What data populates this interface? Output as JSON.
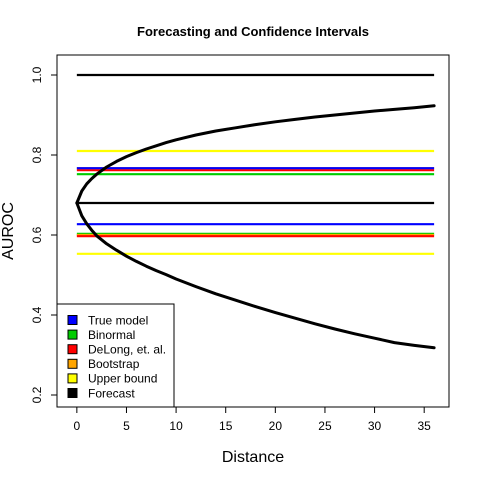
{
  "chart_data": {
    "type": "line",
    "title": "Forecasting and Confidence Intervals",
    "xlabel": "Distance",
    "ylabel": "AUROC",
    "xlim": [
      -2,
      37.5
    ],
    "ylim": [
      0.17,
      1.05
    ],
    "xticks": [
      0,
      5,
      10,
      15,
      20,
      25,
      30,
      35
    ],
    "xtick_labels": [
      "0",
      "5",
      "10",
      "15",
      "20",
      "25",
      "30",
      "35"
    ],
    "yticks": [
      0.2,
      0.4,
      0.6,
      0.8,
      1.0
    ],
    "ytick_labels": [
      "0.2",
      "0.4",
      "0.6",
      "0.8",
      "1.0"
    ],
    "grid": false,
    "legend_position": "bottom-left",
    "legend": [
      {
        "label": "True model",
        "color": "#0000ff"
      },
      {
        "label": "Binormal",
        "color": "#00cc00"
      },
      {
        "label": "DeLong, et. al.",
        "color": "#ff0000"
      },
      {
        "label": "Bootstrap",
        "color": "#ffa500"
      },
      {
        "label": "Upper bound",
        "color": "#ffff00"
      },
      {
        "label": "Forecast",
        "color": "#000000"
      }
    ],
    "horizontal_lines": [
      {
        "series": "Forecast",
        "y": 1.0,
        "color": "#000000",
        "x_range": [
          0,
          36
        ]
      },
      {
        "series": "Upper bound",
        "y": 0.81,
        "color": "#ffff00",
        "x_range": [
          0,
          36
        ]
      },
      {
        "series": "Bootstrap",
        "y": 0.767,
        "color": "#ffa500",
        "x_range": [
          0,
          36
        ]
      },
      {
        "series": "DeLong, et. al.",
        "y": 0.762,
        "color": "#ff0000",
        "x_range": [
          0,
          36
        ]
      },
      {
        "series": "True model",
        "y": 0.767,
        "color": "#0000ff",
        "x_range": [
          0,
          36
        ]
      },
      {
        "series": "Binormal",
        "y": 0.752,
        "color": "#00cc00",
        "x_range": [
          0,
          36
        ]
      },
      {
        "series": "Forecast",
        "y": 0.68,
        "color": "#000000",
        "x_range": [
          0,
          36
        ]
      },
      {
        "series": "True model",
        "y": 0.627,
        "color": "#0000ff",
        "x_range": [
          0,
          36
        ]
      },
      {
        "series": "Binormal",
        "y": 0.603,
        "color": "#00cc00",
        "x_range": [
          0,
          36
        ]
      },
      {
        "series": "Bootstrap",
        "y": 0.6,
        "color": "#ffa500",
        "x_range": [
          0,
          36
        ]
      },
      {
        "series": "DeLong, et. al.",
        "y": 0.597,
        "color": "#ff0000",
        "x_range": [
          0,
          36
        ]
      },
      {
        "series": "Upper bound",
        "y": 0.553,
        "color": "#ffff00",
        "x_range": [
          0,
          36
        ]
      }
    ],
    "curves": [
      {
        "series": "Forecast",
        "bound": "upper",
        "color": "#000000",
        "x": [
          0,
          0.5,
          1,
          1.5,
          2,
          3,
          4,
          5,
          6,
          7,
          8,
          9,
          10,
          12,
          14,
          16,
          18,
          20,
          22,
          24,
          26,
          28,
          30,
          32,
          34,
          36
        ],
        "y": [
          0.68,
          0.71,
          0.728,
          0.741,
          0.752,
          0.77,
          0.784,
          0.796,
          0.806,
          0.815,
          0.823,
          0.831,
          0.838,
          0.85,
          0.86,
          0.868,
          0.876,
          0.883,
          0.889,
          0.895,
          0.9,
          0.905,
          0.91,
          0.914,
          0.918,
          0.923
        ]
      },
      {
        "series": "Forecast",
        "bound": "lower",
        "color": "#000000",
        "x": [
          0,
          0.5,
          1,
          1.5,
          2,
          3,
          4,
          5,
          6,
          7,
          8,
          9,
          10,
          12,
          14,
          16,
          18,
          20,
          22,
          24,
          26,
          28,
          30,
          32,
          34,
          36
        ],
        "y": [
          0.68,
          0.648,
          0.628,
          0.612,
          0.598,
          0.578,
          0.562,
          0.547,
          0.534,
          0.522,
          0.511,
          0.501,
          0.49,
          0.471,
          0.453,
          0.437,
          0.421,
          0.406,
          0.392,
          0.378,
          0.365,
          0.353,
          0.342,
          0.331,
          0.324,
          0.318
        ]
      }
    ]
  }
}
